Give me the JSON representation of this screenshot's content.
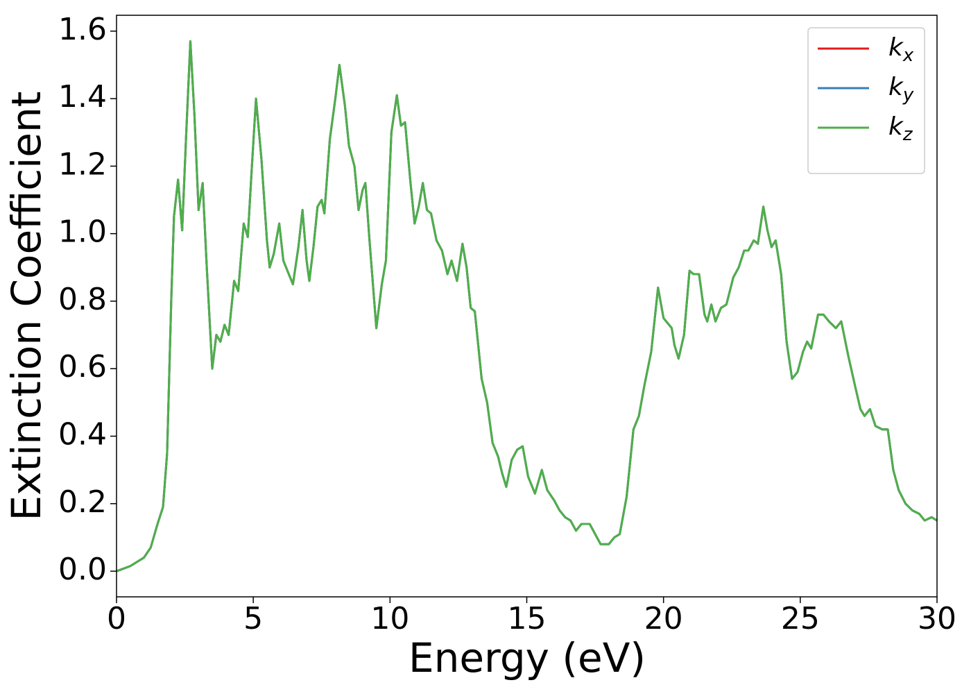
{
  "chart_data": {
    "type": "line",
    "xlabel": "Energy (eV)",
    "ylabel": "Extinction Coefficient",
    "x": [
      0,
      0.5,
      1,
      1.25,
      1.5,
      1.7,
      1.85,
      2,
      2.1,
      2.25,
      2.4,
      2.55,
      2.7,
      2.85,
      3,
      3.15,
      3.3,
      3.5,
      3.65,
      3.8,
      3.95,
      4.1,
      4.3,
      4.45,
      4.65,
      4.8,
      4.95,
      5.1,
      5.3,
      5.5,
      5.6,
      5.75,
      5.95,
      6.1,
      6.3,
      6.45,
      6.65,
      6.8,
      6.95,
      7.05,
      7.2,
      7.35,
      7.5,
      7.6,
      7.8,
      8,
      8.15,
      8.35,
      8.5,
      8.7,
      8.85,
      9,
      9.1,
      9.25,
      9.5,
      9.7,
      9.85,
      10.05,
      10.25,
      10.4,
      10.55,
      10.75,
      10.9,
      11.05,
      11.2,
      11.35,
      11.5,
      11.7,
      11.9,
      12.1,
      12.25,
      12.45,
      12.65,
      12.8,
      12.95,
      13.1,
      13.35,
      13.55,
      13.75,
      13.95,
      14.1,
      14.25,
      14.45,
      14.65,
      14.85,
      15.05,
      15.3,
      15.55,
      15.75,
      16,
      16.2,
      16.4,
      16.6,
      16.8,
      17,
      17.3,
      17.5,
      17.7,
      18,
      18.2,
      18.4,
      18.65,
      18.9,
      19.1,
      19.3,
      19.55,
      19.8,
      20,
      20.3,
      20.4,
      20.55,
      20.75,
      20.95,
      21.1,
      21.3,
      21.5,
      21.6,
      21.75,
      21.9,
      22.1,
      22.3,
      22.55,
      22.75,
      22.95,
      23.1,
      23.3,
      23.45,
      23.65,
      23.8,
      23.95,
      24.1,
      24.3,
      24.5,
      24.7,
      24.9,
      25.1,
      25.25,
      25.4,
      25.65,
      25.85,
      26.05,
      26.3,
      26.5,
      26.75,
      27,
      27.2,
      27.35,
      27.55,
      27.75,
      28,
      28.2,
      28.4,
      28.6,
      28.85,
      29.1,
      29.35,
      29.55,
      29.8,
      30
    ],
    "series": [
      {
        "name": "kx",
        "color": "#e41a1c",
        "values": [
          0,
          0.015,
          0.04,
          0.07,
          0.14,
          0.19,
          0.35,
          0.8,
          1.05,
          1.16,
          1.01,
          1.3,
          1.57,
          1.35,
          1.07,
          1.15,
          0.9,
          0.6,
          0.7,
          0.68,
          0.73,
          0.7,
          0.86,
          0.83,
          1.03,
          0.99,
          1.2,
          1.4,
          1.22,
          0.98,
          0.9,
          0.94,
          1.03,
          0.92,
          0.88,
          0.85,
          0.96,
          1.07,
          0.92,
          0.86,
          0.96,
          1.08,
          1.1,
          1.06,
          1.28,
          1.4,
          1.5,
          1.38,
          1.26,
          1.2,
          1.07,
          1.13,
          1.15,
          0.98,
          0.72,
          0.85,
          0.92,
          1.3,
          1.41,
          1.32,
          1.33,
          1.15,
          1.03,
          1.08,
          1.15,
          1.07,
          1.06,
          0.98,
          0.95,
          0.88,
          0.92,
          0.86,
          0.97,
          0.9,
          0.78,
          0.77,
          0.57,
          0.5,
          0.38,
          0.34,
          0.29,
          0.25,
          0.33,
          0.36,
          0.37,
          0.28,
          0.23,
          0.3,
          0.24,
          0.21,
          0.18,
          0.16,
          0.15,
          0.12,
          0.14,
          0.14,
          0.11,
          0.08,
          0.08,
          0.1,
          0.11,
          0.22,
          0.42,
          0.46,
          0.55,
          0.65,
          0.84,
          0.75,
          0.72,
          0.67,
          0.63,
          0.7,
          0.89,
          0.88,
          0.88,
          0.76,
          0.74,
          0.79,
          0.74,
          0.78,
          0.79,
          0.87,
          0.9,
          0.95,
          0.95,
          0.98,
          0.97,
          1.08,
          1.01,
          0.96,
          0.98,
          0.88,
          0.68,
          0.57,
          0.59,
          0.65,
          0.68,
          0.66,
          0.76,
          0.76,
          0.74,
          0.72,
          0.74,
          0.64,
          0.55,
          0.48,
          0.46,
          0.48,
          0.43,
          0.42,
          0.42,
          0.3,
          0.24,
          0.2,
          0.18,
          0.17,
          0.15,
          0.16,
          0.15
        ]
      },
      {
        "name": "ky",
        "color": "#377eb8",
        "values": [
          0,
          0.015,
          0.04,
          0.07,
          0.14,
          0.19,
          0.35,
          0.8,
          1.05,
          1.16,
          1.01,
          1.3,
          1.57,
          1.35,
          1.07,
          1.15,
          0.9,
          0.6,
          0.7,
          0.68,
          0.73,
          0.7,
          0.86,
          0.83,
          1.03,
          0.99,
          1.2,
          1.4,
          1.22,
          0.98,
          0.9,
          0.94,
          1.03,
          0.92,
          0.88,
          0.85,
          0.96,
          1.07,
          0.92,
          0.86,
          0.96,
          1.08,
          1.1,
          1.06,
          1.28,
          1.4,
          1.5,
          1.38,
          1.26,
          1.2,
          1.07,
          1.13,
          1.15,
          0.98,
          0.72,
          0.85,
          0.92,
          1.3,
          1.41,
          1.32,
          1.33,
          1.15,
          1.03,
          1.08,
          1.15,
          1.07,
          1.06,
          0.98,
          0.95,
          0.88,
          0.92,
          0.86,
          0.97,
          0.9,
          0.78,
          0.77,
          0.57,
          0.5,
          0.38,
          0.34,
          0.29,
          0.25,
          0.33,
          0.36,
          0.37,
          0.28,
          0.23,
          0.3,
          0.24,
          0.21,
          0.18,
          0.16,
          0.15,
          0.12,
          0.14,
          0.14,
          0.11,
          0.08,
          0.08,
          0.1,
          0.11,
          0.22,
          0.42,
          0.46,
          0.55,
          0.65,
          0.84,
          0.75,
          0.72,
          0.67,
          0.63,
          0.7,
          0.89,
          0.88,
          0.88,
          0.76,
          0.74,
          0.79,
          0.74,
          0.78,
          0.79,
          0.87,
          0.9,
          0.95,
          0.95,
          0.98,
          0.97,
          1.08,
          1.01,
          0.96,
          0.98,
          0.88,
          0.68,
          0.57,
          0.59,
          0.65,
          0.68,
          0.66,
          0.76,
          0.76,
          0.74,
          0.72,
          0.74,
          0.64,
          0.55,
          0.48,
          0.46,
          0.48,
          0.43,
          0.42,
          0.42,
          0.3,
          0.24,
          0.2,
          0.18,
          0.17,
          0.15,
          0.16,
          0.15
        ]
      },
      {
        "name": "kz",
        "color": "#4daf4a",
        "values": [
          0,
          0.015,
          0.04,
          0.07,
          0.14,
          0.19,
          0.35,
          0.8,
          1.05,
          1.16,
          1.01,
          1.3,
          1.57,
          1.35,
          1.07,
          1.15,
          0.9,
          0.6,
          0.7,
          0.68,
          0.73,
          0.7,
          0.86,
          0.83,
          1.03,
          0.99,
          1.2,
          1.4,
          1.22,
          0.98,
          0.9,
          0.94,
          1.03,
          0.92,
          0.88,
          0.85,
          0.96,
          1.07,
          0.92,
          0.86,
          0.96,
          1.08,
          1.1,
          1.06,
          1.28,
          1.4,
          1.5,
          1.38,
          1.26,
          1.2,
          1.07,
          1.13,
          1.15,
          0.98,
          0.72,
          0.85,
          0.92,
          1.3,
          1.41,
          1.32,
          1.33,
          1.15,
          1.03,
          1.08,
          1.15,
          1.07,
          1.06,
          0.98,
          0.95,
          0.88,
          0.92,
          0.86,
          0.97,
          0.9,
          0.78,
          0.77,
          0.57,
          0.5,
          0.38,
          0.34,
          0.29,
          0.25,
          0.33,
          0.36,
          0.37,
          0.28,
          0.23,
          0.3,
          0.24,
          0.21,
          0.18,
          0.16,
          0.15,
          0.12,
          0.14,
          0.14,
          0.11,
          0.08,
          0.08,
          0.1,
          0.11,
          0.22,
          0.42,
          0.46,
          0.55,
          0.65,
          0.84,
          0.75,
          0.72,
          0.67,
          0.63,
          0.7,
          0.89,
          0.88,
          0.88,
          0.76,
          0.74,
          0.79,
          0.74,
          0.78,
          0.79,
          0.87,
          0.9,
          0.95,
          0.95,
          0.98,
          0.97,
          1.08,
          1.01,
          0.96,
          0.98,
          0.88,
          0.68,
          0.57,
          0.59,
          0.65,
          0.68,
          0.66,
          0.76,
          0.76,
          0.74,
          0.72,
          0.74,
          0.64,
          0.55,
          0.48,
          0.46,
          0.48,
          0.43,
          0.42,
          0.42,
          0.3,
          0.24,
          0.2,
          0.18,
          0.17,
          0.15,
          0.16,
          0.15
        ]
      }
    ],
    "xlim": [
      0,
      30
    ],
    "xticks": [
      0,
      5,
      10,
      15,
      20,
      25,
      30
    ],
    "ylim": [
      -0.076,
      1.647
    ],
    "yticks": [
      {
        "value": 0,
        "label": "0.0"
      },
      0.2,
      0.4,
      0.6,
      0.8,
      {
        "value": 1,
        "label": "1.0"
      },
      1.2,
      1.4,
      1.6
    ],
    "grid": false,
    "legend": "upper right"
  }
}
